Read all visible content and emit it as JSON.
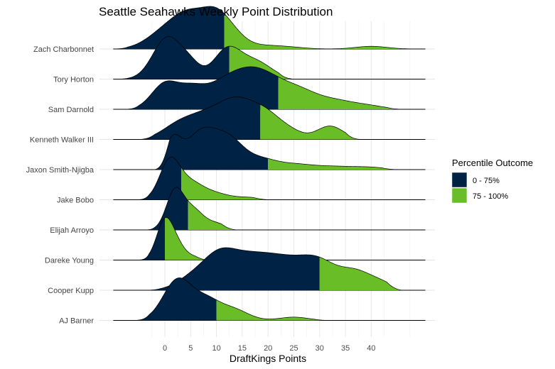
{
  "chart_data": {
    "type": "ridgeline",
    "title": "Seattle Seahawks Weekly Point Distribution",
    "xlabel": "DraftKings Points",
    "ylabel": "",
    "xticks": [
      0,
      5,
      10,
      15,
      20,
      25,
      30,
      35,
      40
    ],
    "xlim": [
      -10,
      53
    ],
    "legend": {
      "title": "Percentile Outcome",
      "placement": "right",
      "entries": [
        {
          "label": "0 - 75%",
          "color": "#002244"
        },
        {
          "label": "75 - 100%",
          "color": "#69BE28"
        }
      ]
    },
    "series": [
      {
        "name": "Zach Charbonnet",
        "range": [
          -10,
          50
        ],
        "p75": 11.5,
        "peaks": [
          [
            0,
            0.55,
            3.5
          ],
          [
            5,
            1.0,
            3.2
          ],
          [
            10,
            0.95,
            2.6
          ],
          [
            13.5,
            0.35,
            2.5
          ],
          [
            19,
            0.1,
            3
          ],
          [
            24,
            0.06,
            3
          ],
          [
            40,
            0.09,
            3
          ]
        ]
      },
      {
        "name": "Tory Horton",
        "range": [
          -10,
          25
        ],
        "p75": 12.5,
        "peaks": [
          [
            0.5,
            1.0,
            2.8
          ],
          [
            5,
            0.28,
            2
          ],
          [
            12,
            0.68,
            2.6
          ],
          [
            17.5,
            0.42,
            3.2
          ]
        ]
      },
      {
        "name": "Sam Darnold",
        "range": [
          -8,
          46
        ],
        "p75": 22,
        "peaks": [
          [
            0,
            0.5,
            2.6
          ],
          [
            5,
            0.3,
            2.5
          ],
          [
            11,
            0.4,
            4
          ],
          [
            18,
            0.72,
            4.5
          ],
          [
            26,
            0.28,
            3.5
          ],
          [
            33,
            0.17,
            4
          ],
          [
            40,
            0.05,
            3
          ]
        ]
      },
      {
        "name": "Kenneth Walker III",
        "range": [
          -5,
          38
        ],
        "p75": 18.5,
        "peaks": [
          [
            2,
            0.22,
            3
          ],
          [
            7,
            0.4,
            3.5
          ],
          [
            14,
            0.8,
            3.8
          ],
          [
            20,
            0.38,
            2.8
          ],
          [
            24.5,
            0.14,
            2.4
          ],
          [
            32,
            0.28,
            2.6
          ]
        ]
      },
      {
        "name": "Jaxon Smith-Njigba",
        "range": [
          -2,
          45
        ],
        "p75": 20,
        "peaks": [
          [
            1.5,
            0.7,
            1.6
          ],
          [
            7,
            0.95,
            3
          ],
          [
            12.5,
            0.7,
            2.8
          ],
          [
            18.5,
            0.25,
            3
          ],
          [
            25,
            0.13,
            3.5
          ],
          [
            33,
            0.08,
            4
          ],
          [
            40,
            0.05,
            3
          ]
        ]
      },
      {
        "name": "Jake Bobo",
        "range": [
          -6,
          20
        ],
        "p75": 3.2,
        "peaks": [
          [
            1.0,
            1.0,
            2.0
          ],
          [
            5,
            0.35,
            2.2
          ],
          [
            9,
            0.18,
            2.8
          ],
          [
            16,
            0.06,
            3
          ]
        ]
      },
      {
        "name": "Elijah Arroyo",
        "range": [
          -5,
          14
        ],
        "p75": 4.5,
        "peaks": [
          [
            2.0,
            1.0,
            1.7
          ],
          [
            5.5,
            0.45,
            1.8
          ],
          [
            9.5,
            0.18,
            2.3
          ]
        ]
      },
      {
        "name": "Dareke Young",
        "range": [
          -6,
          9
        ],
        "p75": 0,
        "peaks": [
          [
            0,
            1.0,
            1.6
          ],
          [
            2.5,
            0.3,
            1.5
          ],
          [
            5.5,
            0.08,
            1.6
          ]
        ]
      },
      {
        "name": "Cooper Kupp",
        "range": [
          -4,
          46
        ],
        "p75": 30,
        "peaks": [
          [
            5,
            0.2,
            3
          ],
          [
            10,
            0.4,
            3
          ],
          [
            15,
            0.55,
            4.5
          ],
          [
            23,
            0.5,
            4.5
          ],
          [
            30,
            0.45,
            3.5
          ],
          [
            37,
            0.32,
            3
          ],
          [
            42,
            0.12,
            2.5
          ]
        ]
      },
      {
        "name": "AJ Barner",
        "range": [
          -6,
          32
        ],
        "p75": 10,
        "peaks": [
          [
            2.5,
            1.0,
            2.8
          ],
          [
            8,
            0.42,
            2.5
          ],
          [
            13,
            0.28,
            3
          ],
          [
            25,
            0.08,
            2.8
          ]
        ]
      }
    ]
  }
}
